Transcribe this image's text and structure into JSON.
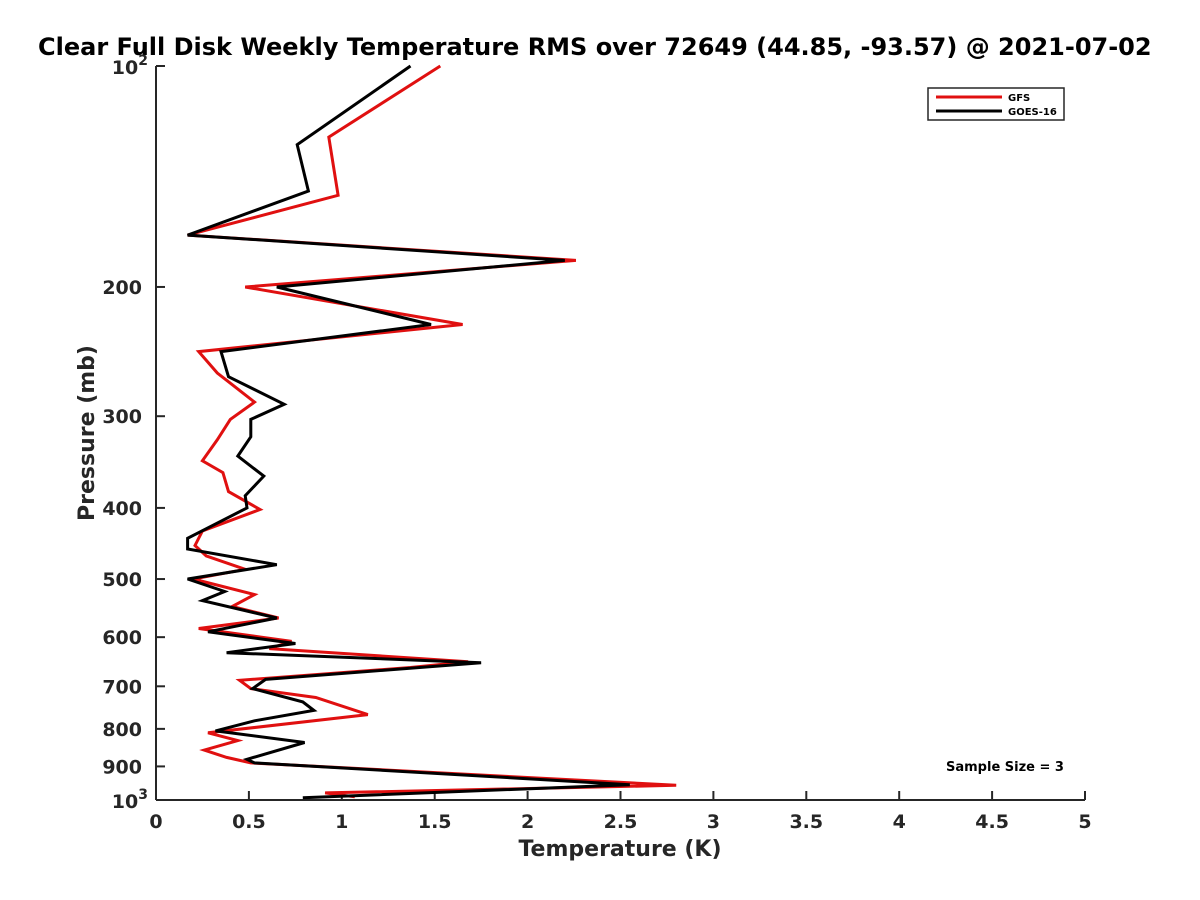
{
  "chart_data": {
    "type": "line",
    "title": "Clear Full Disk Weekly Temperature RMS over 72649 (44.85, -93.57) @ 2021-07-02",
    "xlabel": "Temperature (K)",
    "ylabel": "Pressure (mb)",
    "xlim": [
      0,
      5
    ],
    "ylim": [
      100,
      1000
    ],
    "yscale": "log",
    "y_reversed": true,
    "xticks": [
      "0",
      "0.5",
      "1",
      "1.5",
      "2",
      "2.5",
      "3",
      "3.5",
      "4",
      "4.5",
      "5"
    ],
    "yticks": [
      {
        "value": 100,
        "label": "10",
        "exp": "2"
      },
      {
        "value": 200,
        "label": "200"
      },
      {
        "value": 300,
        "label": "300"
      },
      {
        "value": 400,
        "label": "400"
      },
      {
        "value": 500,
        "label": "500"
      },
      {
        "value": 600,
        "label": "600"
      },
      {
        "value": 700,
        "label": "700"
      },
      {
        "value": 800,
        "label": "800"
      },
      {
        "value": 900,
        "label": "900"
      },
      {
        "value": 1000,
        "label": "10",
        "exp": "3"
      }
    ],
    "grid": false,
    "legend_position": "top-right",
    "annotation": "Sample Size = 3",
    "series": [
      {
        "name": "GFS",
        "color": "#e01010",
        "points": [
          [
            1.53,
            100
          ],
          [
            0.93,
            125
          ],
          [
            0.98,
            150
          ],
          [
            0.17,
            170
          ],
          [
            2.26,
            184
          ],
          [
            0.48,
            200
          ],
          [
            1.65,
            225
          ],
          [
            0.23,
            245
          ],
          [
            0.33,
            262
          ],
          [
            0.53,
            287
          ],
          [
            0.4,
            303
          ],
          [
            0.33,
            323
          ],
          [
            0.25,
            345
          ],
          [
            0.36,
            358
          ],
          [
            0.39,
            380
          ],
          [
            0.56,
            402
          ],
          [
            0.25,
            430
          ],
          [
            0.21,
            450
          ],
          [
            0.27,
            465
          ],
          [
            0.48,
            485
          ],
          [
            0.2,
            500
          ],
          [
            0.53,
            525
          ],
          [
            0.41,
            545
          ],
          [
            0.66,
            565
          ],
          [
            0.23,
            584
          ],
          [
            0.73,
            608
          ],
          [
            0.61,
            622
          ],
          [
            1.68,
            648
          ],
          [
            1.37,
            660
          ],
          [
            0.45,
            687
          ],
          [
            0.51,
            705
          ],
          [
            0.86,
            725
          ],
          [
            1.14,
            765
          ],
          [
            0.28,
            810
          ],
          [
            0.44,
            830
          ],
          [
            0.26,
            855
          ],
          [
            0.38,
            875
          ],
          [
            0.51,
            890
          ],
          [
            2.8,
            955
          ],
          [
            0.91,
            978
          ],
          [
            1.07,
            990
          ]
        ]
      },
      {
        "name": "GOES-16",
        "color": "#000000",
        "points": [
          [
            1.37,
            100
          ],
          [
            0.76,
            128
          ],
          [
            0.82,
            148
          ],
          [
            0.17,
            170
          ],
          [
            2.2,
            184
          ],
          [
            0.65,
            200
          ],
          [
            1.48,
            225
          ],
          [
            0.35,
            245
          ],
          [
            0.39,
            265
          ],
          [
            0.69,
            289
          ],
          [
            0.51,
            303
          ],
          [
            0.51,
            320
          ],
          [
            0.44,
            340
          ],
          [
            0.58,
            362
          ],
          [
            0.48,
            385
          ],
          [
            0.49,
            400
          ],
          [
            0.17,
            440
          ],
          [
            0.17,
            455
          ],
          [
            0.65,
            478
          ],
          [
            0.17,
            500
          ],
          [
            0.37,
            520
          ],
          [
            0.25,
            535
          ],
          [
            0.65,
            565
          ],
          [
            0.28,
            590
          ],
          [
            0.75,
            612
          ],
          [
            0.38,
            630
          ],
          [
            1.75,
            650
          ],
          [
            0.59,
            685
          ],
          [
            0.52,
            705
          ],
          [
            0.79,
            735
          ],
          [
            0.85,
            755
          ],
          [
            0.53,
            780
          ],
          [
            0.32,
            805
          ],
          [
            0.8,
            835
          ],
          [
            0.49,
            880
          ],
          [
            0.53,
            890
          ],
          [
            2.55,
            953
          ],
          [
            0.79,
            993
          ]
        ]
      }
    ]
  }
}
